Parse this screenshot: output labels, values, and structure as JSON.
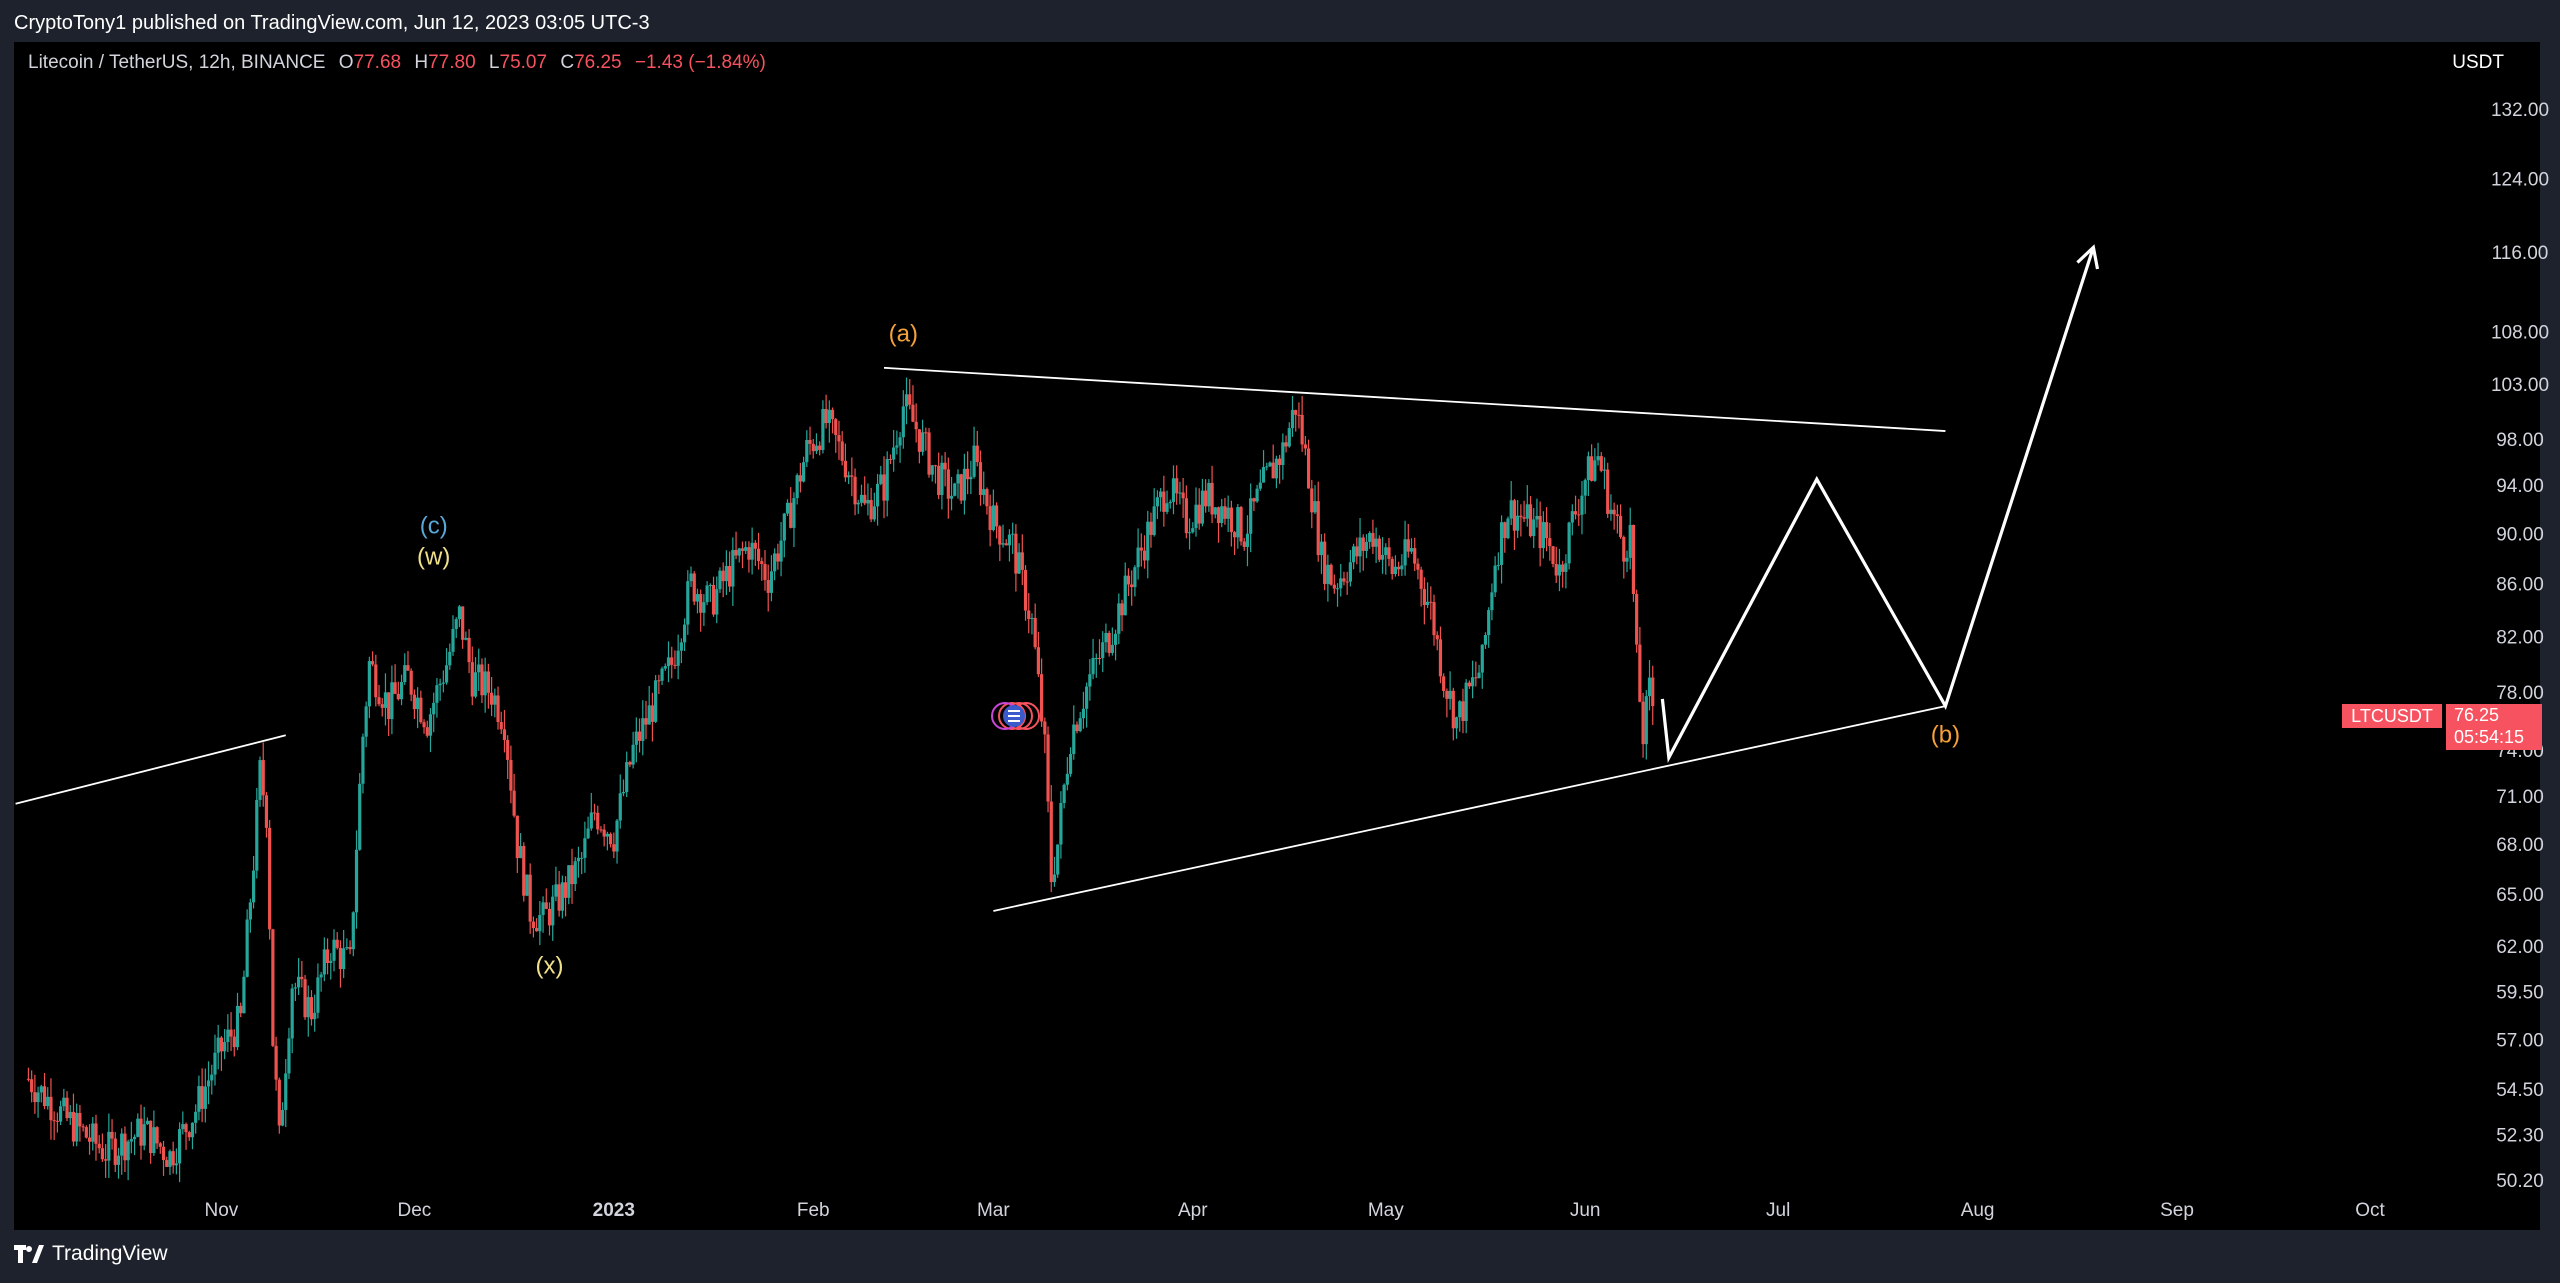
{
  "header": {
    "published_text": "CryptoTony1 published on TradingView.com, Jun 12, 2023 03:05 UTC-3"
  },
  "legend": {
    "title": "Litecoin / TetherUS, 12h, BINANCE",
    "o_label": "O",
    "o_value": "77.68",
    "h_label": "H",
    "h_value": "77.80",
    "l_label": "L",
    "l_value": "75.07",
    "c_label": "C",
    "c_value": "76.25",
    "change": "−1.43 (−1.84%)"
  },
  "currency": "USDT",
  "price_tag": {
    "symbol": "LTCUSDT",
    "price": "76.25",
    "countdown": "05:54:15"
  },
  "footer": {
    "brand": "TradingView"
  },
  "colors": {
    "up": "#26a69a",
    "down": "#ef5350",
    "background": "#000000",
    "orange_label": "#f5a13a",
    "yellow_label": "#f0e08a",
    "blue_label": "#5aa8d8",
    "drawing": "#ffffff"
  },
  "chart_data": {
    "type": "candlestick",
    "symbol": "LTCUSDT",
    "timeframe": "12h",
    "ylim": [
      49.5,
      140
    ],
    "y_scale": "log",
    "y_ticks": [
      "132.00",
      "124.00",
      "116.00",
      "108.00",
      "103.00",
      "98.00",
      "94.00",
      "90.00",
      "86.00",
      "82.00",
      "78.00",
      "74.00",
      "71.00",
      "68.00",
      "65.00",
      "62.00",
      "59.50",
      "57.00",
      "54.50",
      "52.30",
      "50.20"
    ],
    "x_ticks": [
      {
        "label": "Nov",
        "date": "2022-11-01",
        "bold": false
      },
      {
        "label": "Dec",
        "date": "2022-12-01",
        "bold": false
      },
      {
        "label": "2023",
        "date": "2023-01-01",
        "bold": true
      },
      {
        "label": "Feb",
        "date": "2023-02-01",
        "bold": false
      },
      {
        "label": "Mar",
        "date": "2023-03-01",
        "bold": false
      },
      {
        "label": "Apr",
        "date": "2023-04-01",
        "bold": false
      },
      {
        "label": "May",
        "date": "2023-05-01",
        "bold": false
      },
      {
        "label": "Jun",
        "date": "2023-06-01",
        "bold": false
      },
      {
        "label": "Jul",
        "date": "2023-07-01",
        "bold": false
      },
      {
        "label": "Aug",
        "date": "2023-08-01",
        "bold": false
      },
      {
        "label": "Sep",
        "date": "2023-09-01",
        "bold": false
      },
      {
        "label": "Oct",
        "date": "2023-10-01",
        "bold": false
      }
    ],
    "price_path": [
      [
        "2022-10-02",
        55.0
      ],
      [
        "2022-10-08",
        53.0
      ],
      [
        "2022-10-14",
        51.5
      ],
      [
        "2022-10-20",
        52.5
      ],
      [
        "2022-10-24",
        51.3
      ],
      [
        "2022-10-28",
        53.5
      ],
      [
        "2022-11-01",
        56.5
      ],
      [
        "2022-11-04",
        58.0
      ],
      [
        "2022-11-06",
        67.0
      ],
      [
        "2022-11-07",
        72.5
      ],
      [
        "2022-11-08",
        70.0
      ],
      [
        "2022-11-09",
        57.0
      ],
      [
        "2022-11-10",
        52.0
      ],
      [
        "2022-11-12",
        60.0
      ],
      [
        "2022-11-15",
        58.5
      ],
      [
        "2022-11-18",
        62.0
      ],
      [
        "2022-11-21",
        61.0
      ],
      [
        "2022-11-23",
        75.0
      ],
      [
        "2022-11-24",
        80.0
      ],
      [
        "2022-11-27",
        77.0
      ],
      [
        "2022-11-30",
        79.0
      ],
      [
        "2022-12-03",
        76.0
      ],
      [
        "2022-12-06",
        80.0
      ],
      [
        "2022-12-08",
        83.5
      ],
      [
        "2022-12-10",
        79.0
      ],
      [
        "2022-12-13",
        78.0
      ],
      [
        "2022-12-15",
        76.0
      ],
      [
        "2022-12-17",
        68.0
      ],
      [
        "2022-12-19",
        64.0
      ],
      [
        "2022-12-21",
        63.5
      ],
      [
        "2022-12-24",
        65.0
      ],
      [
        "2022-12-27",
        67.0
      ],
      [
        "2022-12-29",
        70.0
      ],
      [
        "2023-01-01",
        68.5
      ],
      [
        "2023-01-04",
        74.0
      ],
      [
        "2023-01-07",
        77.0
      ],
      [
        "2023-01-10",
        80.0
      ],
      [
        "2023-01-13",
        86.0
      ],
      [
        "2023-01-16",
        84.5
      ],
      [
        "2023-01-19",
        87.0
      ],
      [
        "2023-01-22",
        89.0
      ],
      [
        "2023-01-25",
        86.5
      ],
      [
        "2023-01-28",
        91.0
      ],
      [
        "2023-01-31",
        97.0
      ],
      [
        "2023-02-03",
        99.5
      ],
      [
        "2023-02-06",
        96.0
      ],
      [
        "2023-02-09",
        92.0
      ],
      [
        "2023-02-12",
        94.0
      ],
      [
        "2023-02-15",
        101.0
      ],
      [
        "2023-02-17",
        99.0
      ],
      [
        "2023-02-20",
        95.0
      ],
      [
        "2023-02-23",
        93.0
      ],
      [
        "2023-02-26",
        96.0
      ],
      [
        "2023-03-01",
        91.0
      ],
      [
        "2023-03-04",
        89.0
      ],
      [
        "2023-03-07",
        83.0
      ],
      [
        "2023-03-09",
        74.0
      ],
      [
        "2023-03-10",
        66.0
      ],
      [
        "2023-03-11",
        68.0
      ],
      [
        "2023-03-13",
        75.0
      ],
      [
        "2023-03-16",
        79.0
      ],
      [
        "2023-03-19",
        82.0
      ],
      [
        "2023-03-22",
        86.0
      ],
      [
        "2023-03-25",
        90.0
      ],
      [
        "2023-03-28",
        94.0
      ],
      [
        "2023-03-31",
        91.0
      ],
      [
        "2023-04-03",
        93.0
      ],
      [
        "2023-04-06",
        92.0
      ],
      [
        "2023-04-09",
        90.0
      ],
      [
        "2023-04-12",
        94.0
      ],
      [
        "2023-04-15",
        97.0
      ],
      [
        "2023-04-17",
        101.0
      ],
      [
        "2023-04-19",
        95.0
      ],
      [
        "2023-04-21",
        88.0
      ],
      [
        "2023-04-23",
        86.0
      ],
      [
        "2023-04-26",
        88.0
      ],
      [
        "2023-04-29",
        90.0
      ],
      [
        "2023-05-02",
        87.0
      ],
      [
        "2023-05-05",
        88.5
      ],
      [
        "2023-05-08",
        84.0
      ],
      [
        "2023-05-10",
        79.0
      ],
      [
        "2023-05-12",
        76.0
      ],
      [
        "2023-05-14",
        78.0
      ],
      [
        "2023-05-16",
        80.0
      ],
      [
        "2023-05-18",
        88.0
      ],
      [
        "2023-05-20",
        92.0
      ],
      [
        "2023-05-23",
        91.0
      ],
      [
        "2023-05-26",
        89.5
      ],
      [
        "2023-05-28",
        87.0
      ],
      [
        "2023-05-30",
        91.0
      ],
      [
        "2023-06-01",
        94.5
      ],
      [
        "2023-06-03",
        96.5
      ],
      [
        "2023-06-05",
        92.0
      ],
      [
        "2023-06-07",
        89.0
      ],
      [
        "2023-06-08",
        90.0
      ],
      [
        "2023-06-09",
        80.0
      ],
      [
        "2023-06-10",
        75.0
      ],
      [
        "2023-06-11",
        78.0
      ],
      [
        "2023-06-12",
        76.25
      ]
    ],
    "trendlines": [
      {
        "name": "resistance",
        "from": [
          "2023-02-12",
          104.5
        ],
        "to": [
          "2023-07-27",
          98.7
        ]
      },
      {
        "name": "support",
        "from": [
          "2023-03-01",
          64.0
        ],
        "to": [
          "2023-07-27",
          77.0
        ]
      },
      {
        "name": "old-support",
        "from": [
          "2022-09-30",
          70.5
        ],
        "to": [
          "2022-11-11",
          75.0
        ]
      }
    ],
    "projection": [
      [
        "2023-06-13",
        77.5
      ],
      [
        "2023-06-14",
        73.5
      ],
      [
        "2023-07-07",
        94.5
      ],
      [
        "2023-07-27",
        77.0
      ],
      [
        "2023-08-19",
        116.5
      ]
    ],
    "wave_labels": [
      {
        "text": "(a)",
        "date": "2023-02-15",
        "price": 107.0,
        "color": "#f5a13a"
      },
      {
        "text": "(c)",
        "date": "2022-12-04",
        "price": 90.0,
        "color": "#5aa8d8"
      },
      {
        "text": "(w)",
        "date": "2022-12-04",
        "price": 87.5,
        "color": "#f0e08a"
      },
      {
        "text": "(x)",
        "date": "2022-12-22",
        "price": 60.5,
        "color": "#f0e08a"
      },
      {
        "text": "(b)",
        "date": "2023-07-27",
        "price": 74.5,
        "color": "#f5a13a"
      }
    ]
  }
}
